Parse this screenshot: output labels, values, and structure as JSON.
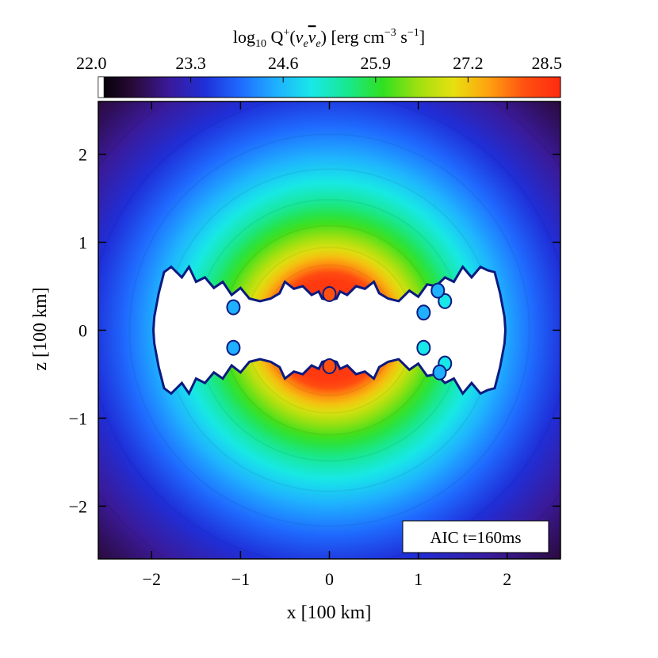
{
  "chart_data": {
    "type": "heatmap",
    "title": "",
    "colorbar": {
      "label_parts": {
        "log": "log",
        "sub10": "10",
        "q": " Q",
        "sup_plus": "+",
        "open": "(",
        "nu1": "ν",
        "sub_e1": "e",
        "nu2": "ν",
        "sub_e2": "e",
        "close": ")",
        "units1": " [erg cm",
        "sup_m3": "−3",
        "units2": " s",
        "sup_m1": "−1",
        "units3": "]"
      },
      "min": 22.0,
      "max": 28.5,
      "ticks": [
        "22.0",
        "23.3",
        "24.6",
        "25.9",
        "27.2",
        "28.5"
      ],
      "tick_values": [
        22.0,
        23.3,
        24.6,
        25.9,
        27.2,
        28.5
      ],
      "colormap": [
        "#000000",
        "#2a0a3a",
        "#3a1a9a",
        "#1f2fd8",
        "#1f6bff",
        "#1fb0ff",
        "#18e8e8",
        "#18e890",
        "#30e020",
        "#a0e010",
        "#e8e010",
        "#ffa010",
        "#ff5010",
        "#ff2a10"
      ]
    },
    "xlabel": "x [100 km]",
    "ylabel": "z [100 km]",
    "xlim": [
      -2.6,
      2.6
    ],
    "ylim": [
      -2.6,
      2.6
    ],
    "xticks": [
      -2,
      -1,
      0,
      1,
      2
    ],
    "yticks": [
      -2,
      -1,
      0,
      1,
      2
    ],
    "xtick_labels": [
      "−2",
      "−1",
      "0",
      "1",
      "2"
    ],
    "ytick_labels": [
      "−2",
      "−1",
      "0",
      "1",
      "2"
    ],
    "field_description": {
      "peak_value": 28.3,
      "peak_radius": 0.6,
      "outer_value": 23.6,
      "outer_radius": 2.6
    },
    "annotation": "AIC t=160ms"
  }
}
